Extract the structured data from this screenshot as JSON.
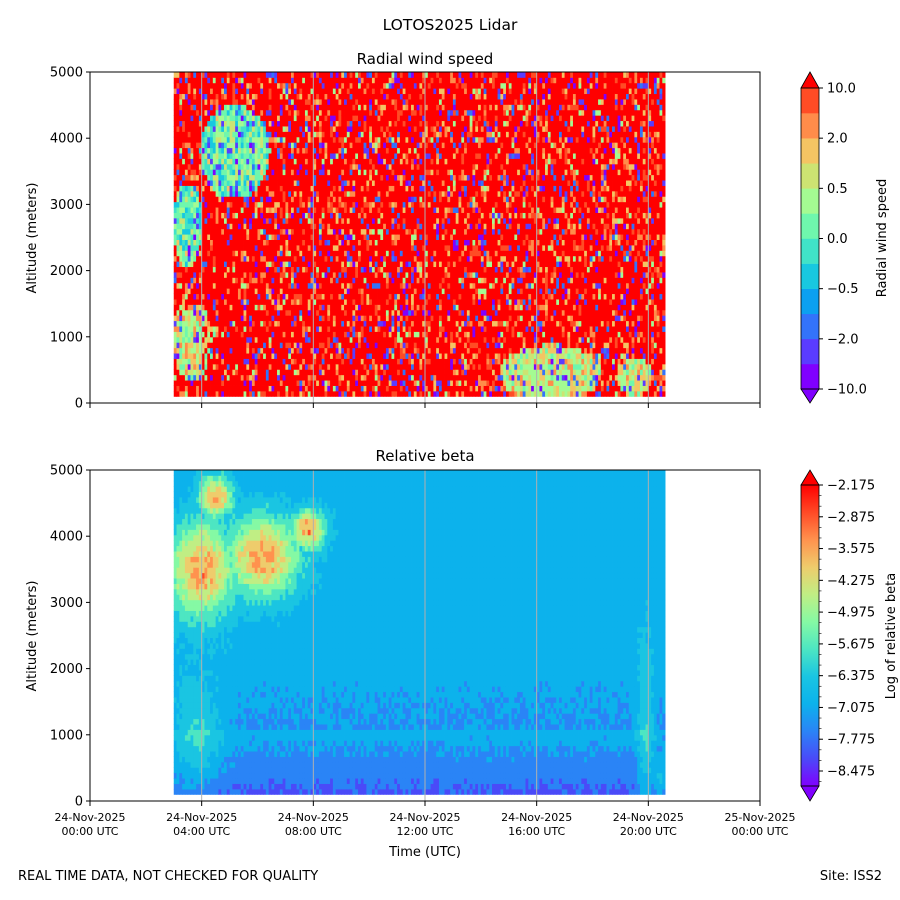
{
  "figure": {
    "suptitle": "LOTOS2025 Lidar",
    "footer_left": "REAL TIME DATA, NOT CHECKED FOR QUALITY",
    "footer_right": "Site: ISS2"
  },
  "chart_data": [
    {
      "type": "heatmap",
      "title": "Radial wind speed",
      "ylabel": "Altitude (meters)",
      "xlabel": "",
      "ylim": [
        0,
        5000
      ],
      "yticks": [
        0,
        1000,
        2000,
        3000,
        4000,
        5000
      ],
      "xlim_hours": [
        0,
        24
      ],
      "data_extent_hours": [
        3.0,
        20.6
      ],
      "data_extent_altitude": [
        100,
        5000
      ],
      "colorbar": {
        "label": "Radial wind speed",
        "extend": "both",
        "levels": 12,
        "tick_labels": [
          "10.0",
          "2.0",
          "0.5",
          "0.0",
          "−0.5",
          "−2.0",
          "−10.0"
        ],
        "colors": [
          "#8000ff",
          "#5a3cff",
          "#3373fa",
          "#0ca0f0",
          "#18c8e0",
          "#40e3c8",
          "#6ff7ad",
          "#a4fb92",
          "#cde372",
          "#f4c463",
          "#ff8c4a",
          "#ff4c25",
          "#ff0000"
        ]
      }
    },
    {
      "type": "heatmap",
      "title": "Relative beta",
      "ylabel": "Altitude (meters)",
      "xlabel": "Time (UTC)",
      "ylim": [
        0,
        5000
      ],
      "yticks": [
        0,
        1000,
        2000,
        3000,
        4000,
        5000
      ],
      "xlim_hours": [
        0,
        24
      ],
      "xticks": [
        {
          "hour": 0,
          "date": "24-Nov-2025",
          "time": "00:00 UTC"
        },
        {
          "hour": 4,
          "date": "24-Nov-2025",
          "time": "04:00 UTC"
        },
        {
          "hour": 8,
          "date": "24-Nov-2025",
          "time": "08:00 UTC"
        },
        {
          "hour": 12,
          "date": "24-Nov-2025",
          "time": "12:00 UTC"
        },
        {
          "hour": 16,
          "date": "24-Nov-2025",
          "time": "16:00 UTC"
        },
        {
          "hour": 20,
          "date": "24-Nov-2025",
          "time": "20:00 UTC"
        },
        {
          "hour": 24,
          "date": "25-Nov-2025",
          "time": "00:00 UTC"
        }
      ],
      "data_extent_hours": [
        3.0,
        20.6
      ],
      "data_extent_altitude": [
        100,
        5000
      ],
      "colorbar": {
        "label": "Log of relative beta",
        "extend": "both",
        "tick_labels": [
          "−2.175",
          "−2.875",
          "−3.575",
          "−4.275",
          "−4.975",
          "−5.675",
          "−6.375",
          "−7.075",
          "−7.775",
          "−8.475"
        ],
        "colors": [
          "#8000ff",
          "#4a4af8",
          "#2a84f6",
          "#0cb2ec",
          "#1ac5e2",
          "#4de6c2",
          "#85f9a4",
          "#c0ee84",
          "#eecc6c",
          "#ff924e",
          "#ff4a26",
          "#ff0000"
        ]
      }
    }
  ]
}
